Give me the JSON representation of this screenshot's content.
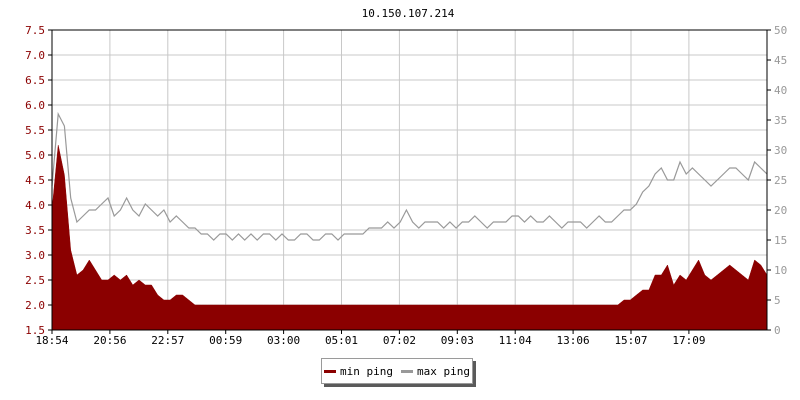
{
  "chart_data": {
    "type": "area",
    "title": "10.150.107.214",
    "x_ticks": [
      "18:54",
      "20:56",
      "22:57",
      "00:59",
      "03:00",
      "05:01",
      "07:02",
      "09:03",
      "11:04",
      "13:06",
      "15:07",
      "17:09"
    ],
    "y_left_ticks": [
      "1.5",
      "2.0",
      "2.5",
      "3.0",
      "3.5",
      "4.0",
      "4.5",
      "5.0",
      "5.5",
      "6.0",
      "6.5",
      "7.0",
      "7.5"
    ],
    "y_right_ticks": [
      "0",
      "5",
      "10",
      "15",
      "20",
      "25",
      "30",
      "35",
      "40",
      "45",
      "50"
    ],
    "ylim_left": [
      1.5,
      7.5
    ],
    "ylim_right": [
      0,
      50
    ],
    "grid": true,
    "legend_placement": "bottom-center",
    "series": [
      {
        "name": "min ping",
        "axis": "left",
        "color": "#8b0000",
        "style": "filled-area",
        "values": [
          3.9,
          5.2,
          4.6,
          3.1,
          2.6,
          2.7,
          2.9,
          2.7,
          2.5,
          2.5,
          2.6,
          2.5,
          2.6,
          2.4,
          2.5,
          2.4,
          2.4,
          2.2,
          2.1,
          2.1,
          2.2,
          2.2,
          2.1,
          2.0,
          2.0,
          2.0,
          2.0,
          2.0,
          2.0,
          2.0,
          2.0,
          2.0,
          2.0,
          2.0,
          2.0,
          2.0,
          2.0,
          2.0,
          2.0,
          2.0,
          2.0,
          2.0,
          2.0,
          2.0,
          2.0,
          2.0,
          2.0,
          2.0,
          2.0,
          2.0,
          2.0,
          2.0,
          2.0,
          2.0,
          2.0,
          2.0,
          2.0,
          2.0,
          2.0,
          2.0,
          2.0,
          2.0,
          2.0,
          2.0,
          2.0,
          2.0,
          2.0,
          2.0,
          2.0,
          2.0,
          2.0,
          2.0,
          2.0,
          2.0,
          2.0,
          2.0,
          2.0,
          2.0,
          2.0,
          2.0,
          2.0,
          2.0,
          2.0,
          2.0,
          2.0,
          2.0,
          2.0,
          2.0,
          2.0,
          2.0,
          2.0,
          2.0,
          2.1,
          2.1,
          2.2,
          2.3,
          2.3,
          2.6,
          2.6,
          2.8,
          2.4,
          2.6,
          2.5,
          2.7,
          2.9,
          2.6,
          2.5,
          2.6,
          2.7,
          2.8,
          2.7,
          2.6,
          2.5,
          2.9,
          2.8,
          2.6
        ]
      },
      {
        "name": "max ping",
        "axis": "right",
        "color": "#999999",
        "style": "line",
        "values": [
          24,
          36,
          34,
          22,
          18,
          19,
          20,
          20,
          21,
          22,
          19,
          20,
          22,
          20,
          19,
          21,
          20,
          19,
          20,
          18,
          19,
          18,
          17,
          17,
          16,
          16,
          15,
          16,
          16,
          15,
          16,
          15,
          16,
          15,
          16,
          16,
          15,
          16,
          15,
          15,
          16,
          16,
          15,
          15,
          16,
          16,
          15,
          16,
          16,
          16,
          16,
          17,
          17,
          17,
          18,
          17,
          18,
          20,
          18,
          17,
          18,
          18,
          18,
          17,
          18,
          17,
          18,
          18,
          19,
          18,
          17,
          18,
          18,
          18,
          19,
          19,
          18,
          19,
          18,
          18,
          19,
          18,
          17,
          18,
          18,
          18,
          17,
          18,
          19,
          18,
          18,
          19,
          20,
          20,
          21,
          23,
          24,
          26,
          27,
          25,
          25,
          28,
          26,
          27,
          26,
          25,
          24,
          25,
          26,
          27,
          27,
          26,
          25,
          28,
          27,
          26
        ]
      }
    ]
  }
}
